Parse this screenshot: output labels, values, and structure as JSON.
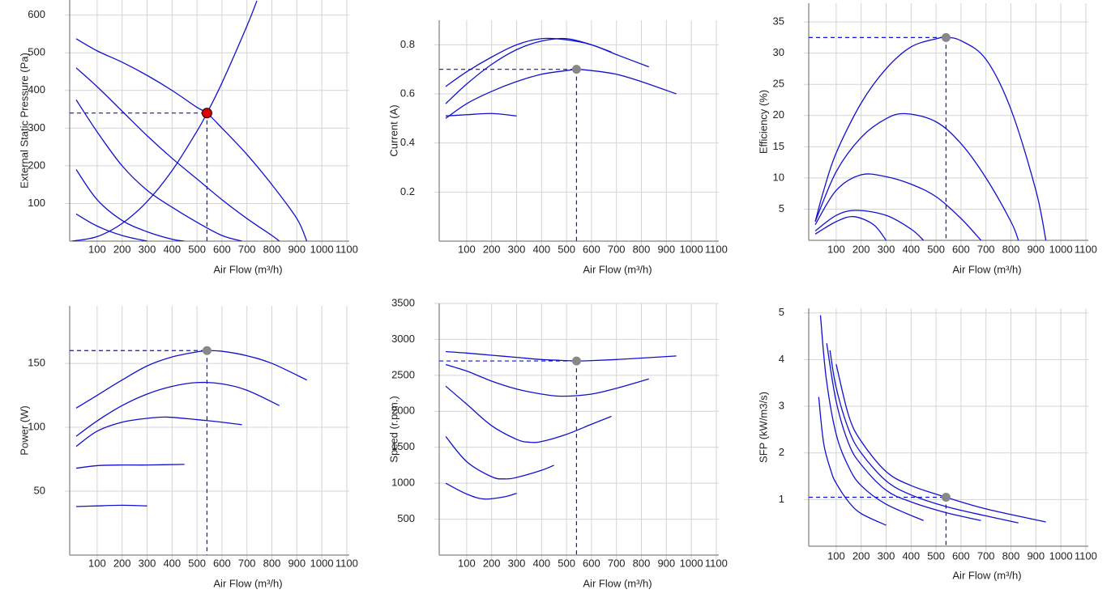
{
  "chart_data": [
    {
      "type": "line",
      "x_label": "Air Flow (m³/h)",
      "y_label": "External Static Pressure (Pa)",
      "xlim": [
        -10,
        1110
      ],
      "ylim": [
        0,
        640
      ],
      "xticks": [
        100,
        200,
        300,
        400,
        500,
        600,
        700,
        800,
        900,
        1000,
        1100
      ],
      "yticks": [
        100,
        200,
        300,
        400,
        500,
        600
      ],
      "grid": true,
      "series": [
        {
          "color": "#1010d0",
          "x": [
            16,
            100,
            200,
            300,
            400,
            500,
            540,
            600,
            700,
            800,
            900,
            940
          ],
          "values": [
            537,
            505,
            475,
            440,
            400,
            355,
            340,
            300,
            230,
            150,
            60,
            0
          ]
        },
        {
          "color": "#1010d0",
          "x": [
            16,
            100,
            200,
            300,
            400,
            500,
            600,
            700,
            800,
            830
          ],
          "values": [
            460,
            410,
            345,
            280,
            220,
            165,
            110,
            60,
            15,
            0
          ]
        },
        {
          "color": "#1010d0",
          "x": [
            16,
            100,
            200,
            300,
            400,
            500,
            600,
            680
          ],
          "values": [
            375,
            290,
            200,
            135,
            90,
            50,
            15,
            0
          ]
        },
        {
          "color": "#1010d0",
          "x": [
            16,
            100,
            200,
            300,
            400,
            450
          ],
          "values": [
            190,
            110,
            55,
            25,
            5,
            0
          ]
        },
        {
          "color": "#1010d0",
          "x": [
            16,
            100,
            200,
            300
          ],
          "values": [
            72,
            40,
            15,
            0
          ]
        },
        {
          "color": "#1010d0",
          "x": [
            0,
            100,
            200,
            300,
            400,
            500,
            540,
            600,
            700,
            740
          ],
          "values": [
            0,
            12,
            47,
            105,
            187,
            292,
            340,
            420,
            571,
            638
          ]
        }
      ],
      "point": {
        "x": 540,
        "y": 340,
        "color": "#dd0000"
      }
    },
    {
      "type": "line",
      "x_label": "Air Flow (m³/h)",
      "y_label": "Current (A)",
      "xlim": [
        -10,
        1110
      ],
      "ylim": [
        0,
        0.9
      ],
      "xticks": [
        100,
        200,
        300,
        400,
        500,
        600,
        700,
        800,
        900,
        1000,
        1100
      ],
      "yticks": [
        0.2,
        0.4,
        0.6,
        0.8
      ],
      "grid": true,
      "series": [
        {
          "color": "#1010d0",
          "x": [
            16,
            100,
            200,
            300,
            400,
            500,
            600,
            700,
            830
          ],
          "values": [
            0.63,
            0.69,
            0.75,
            0.8,
            0.825,
            0.82,
            0.8,
            0.76,
            0.71
          ]
        },
        {
          "color": "#1010d0",
          "x": [
            16,
            100,
            200,
            300,
            400,
            500,
            600,
            680
          ],
          "values": [
            0.56,
            0.64,
            0.72,
            0.78,
            0.815,
            0.825,
            0.8,
            0.77
          ]
        },
        {
          "color": "#1010d0",
          "x": [
            16,
            100,
            200,
            300,
            400,
            500,
            540,
            600,
            700,
            800,
            940
          ],
          "values": [
            0.5,
            0.56,
            0.61,
            0.65,
            0.68,
            0.695,
            0.7,
            0.695,
            0.68,
            0.65,
            0.6
          ]
        },
        {
          "color": "#1010d0",
          "x": [
            16,
            100,
            200,
            300
          ],
          "values": [
            0.51,
            0.515,
            0.52,
            0.51
          ]
        }
      ],
      "point": {
        "x": 540,
        "y": 0.7,
        "color": "#888888"
      }
    },
    {
      "type": "line",
      "x_label": "Air Flow (m³/h)",
      "y_label": "Efficiency (%)",
      "xlim": [
        -10,
        1110
      ],
      "ylim": [
        0,
        38
      ],
      "xticks": [
        100,
        200,
        300,
        400,
        500,
        600,
        700,
        800,
        900,
        1000,
        1100
      ],
      "yticks": [
        5,
        10,
        15,
        20,
        25,
        30,
        35
      ],
      "grid": true,
      "series": [
        {
          "color": "#1010d0",
          "x": [
            16,
            50,
            100,
            200,
            300,
            400,
            500,
            540,
            600,
            700,
            800,
            900,
            940
          ],
          "values": [
            3,
            8,
            14,
            22,
            27.5,
            31,
            32.3,
            32.5,
            32,
            29,
            21,
            8,
            0
          ]
        },
        {
          "color": "#1010d0",
          "x": [
            16,
            100,
            200,
            300,
            380,
            500,
            600,
            700,
            800,
            830
          ],
          "values": [
            3,
            11,
            16.5,
            19.5,
            20.3,
            19,
            15.5,
            10,
            3,
            0
          ]
        },
        {
          "color": "#1010d0",
          "x": [
            16,
            100,
            200,
            300,
            400,
            500,
            600,
            680
          ],
          "values": [
            2.5,
            8,
            10.5,
            10.2,
            9,
            7,
            3.5,
            0
          ]
        },
        {
          "color": "#1010d0",
          "x": [
            16,
            100,
            180,
            300,
            400,
            450
          ],
          "values": [
            1.5,
            4,
            4.8,
            4,
            1.8,
            0
          ]
        },
        {
          "color": "#1010d0",
          "x": [
            16,
            100,
            170,
            250,
            300
          ],
          "values": [
            1,
            3,
            3.8,
            2.5,
            0
          ]
        }
      ],
      "point": {
        "x": 540,
        "y": 32.5,
        "color": "#888888"
      }
    },
    {
      "type": "line",
      "x_label": "Air Flow (m³/h)",
      "y_label": "Power (W)",
      "xlim": [
        -10,
        1110
      ],
      "ylim": [
        0,
        195
      ],
      "xticks": [
        100,
        200,
        300,
        400,
        500,
        600,
        700,
        800,
        900,
        1000,
        1100
      ],
      "yticks": [
        50,
        100,
        150
      ],
      "grid": true,
      "series": [
        {
          "color": "#1010d0",
          "x": [
            16,
            100,
            200,
            300,
            400,
            500,
            540,
            600,
            700,
            800,
            940
          ],
          "values": [
            115,
            125,
            137,
            148,
            155,
            159,
            160,
            159.5,
            156,
            150,
            137
          ]
        },
        {
          "color": "#1010d0",
          "x": [
            16,
            100,
            200,
            300,
            400,
            500,
            600,
            700,
            830
          ],
          "values": [
            93,
            105,
            117,
            126,
            132,
            135,
            134,
            129,
            117
          ]
        },
        {
          "color": "#1010d0",
          "x": [
            16,
            100,
            200,
            300,
            380,
            500,
            600,
            680
          ],
          "values": [
            85,
            97,
            104,
            107,
            108,
            106,
            104,
            102
          ]
        },
        {
          "color": "#1010d0",
          "x": [
            16,
            100,
            200,
            300,
            450
          ],
          "values": [
            68,
            70,
            70.5,
            70.5,
            71
          ]
        },
        {
          "color": "#1010d0",
          "x": [
            16,
            100,
            200,
            300
          ],
          "values": [
            38,
            38.5,
            39,
            38.5
          ]
        }
      ],
      "point": {
        "x": 540,
        "y": 160,
        "color": "#888888"
      }
    },
    {
      "type": "line",
      "x_label": "Air Flow (m³/h)",
      "y_label": "Speed (r.p.m.)",
      "xlim": [
        -10,
        1110
      ],
      "ylim": [
        0,
        3500
      ],
      "xticks": [
        100,
        200,
        300,
        400,
        500,
        600,
        700,
        800,
        900,
        1000,
        1100
      ],
      "yticks": [
        500,
        1000,
        1500,
        2000,
        2500,
        3000,
        3500
      ],
      "grid": true,
      "series": [
        {
          "color": "#1010d0",
          "x": [
            16,
            100,
            200,
            300,
            400,
            500,
            540,
            600,
            700,
            800,
            940
          ],
          "values": [
            2830,
            2810,
            2780,
            2750,
            2720,
            2705,
            2700,
            2705,
            2720,
            2740,
            2770
          ]
        },
        {
          "color": "#1010d0",
          "x": [
            16,
            100,
            200,
            300,
            400,
            480,
            600,
            700,
            830
          ],
          "values": [
            2650,
            2560,
            2420,
            2310,
            2240,
            2210,
            2240,
            2320,
            2450
          ]
        },
        {
          "color": "#1010d0",
          "x": [
            16,
            100,
            200,
            300,
            350,
            400,
            500,
            600,
            680
          ],
          "values": [
            2350,
            2100,
            1800,
            1610,
            1570,
            1580,
            1680,
            1820,
            1930
          ]
        },
        {
          "color": "#1010d0",
          "x": [
            16,
            100,
            200,
            250,
            300,
            400,
            450
          ],
          "values": [
            1650,
            1300,
            1090,
            1060,
            1080,
            1180,
            1250
          ]
        },
        {
          "color": "#1010d0",
          "x": [
            16,
            100,
            170,
            250,
            300
          ],
          "values": [
            1000,
            850,
            780,
            810,
            860
          ]
        }
      ],
      "point": {
        "x": 540,
        "y": 2700,
        "color": "#888888"
      }
    },
    {
      "type": "line",
      "x_label": "Air Flow (m³/h)",
      "y_label": "SFP (kW/m3/s)",
      "xlim": [
        -10,
        1110
      ],
      "ylim": [
        0,
        5.1
      ],
      "xticks": [
        100,
        200,
        300,
        400,
        500,
        600,
        700,
        800,
        900,
        1000,
        1100
      ],
      "yticks": [
        1,
        2,
        3,
        4,
        5
      ],
      "grid": true,
      "series": [
        {
          "color": "#1010d0",
          "x": [
            100,
            150,
            200,
            300,
            400,
            540,
            700,
            940
          ],
          "values": [
            3.9,
            2.8,
            2.25,
            1.6,
            1.3,
            1.05,
            0.8,
            0.52
          ]
        },
        {
          "color": "#1010d0",
          "x": [
            75,
            100,
            150,
            200,
            300,
            400,
            540,
            700,
            830
          ],
          "values": [
            4.2,
            3.4,
            2.5,
            2.0,
            1.4,
            1.1,
            0.85,
            0.65,
            0.5
          ]
        },
        {
          "color": "#1010d0",
          "x": [
            62,
            100,
            150,
            200,
            300,
            400,
            540,
            680
          ],
          "values": [
            4.35,
            3.1,
            2.2,
            1.75,
            1.2,
            0.95,
            0.72,
            0.55
          ]
        },
        {
          "color": "#1010d0",
          "x": [
            37,
            60,
            100,
            150,
            200,
            300,
            450
          ],
          "values": [
            4.95,
            3.6,
            2.4,
            1.7,
            1.3,
            0.9,
            0.55
          ]
        },
        {
          "color": "#1010d0",
          "x": [
            30,
            50,
            80,
            100,
            150,
            200,
            300
          ],
          "values": [
            3.2,
            2.2,
            1.6,
            1.35,
            0.95,
            0.7,
            0.45
          ]
        }
      ],
      "point": {
        "x": 540,
        "y": 1.05,
        "color": "#888888"
      }
    }
  ]
}
